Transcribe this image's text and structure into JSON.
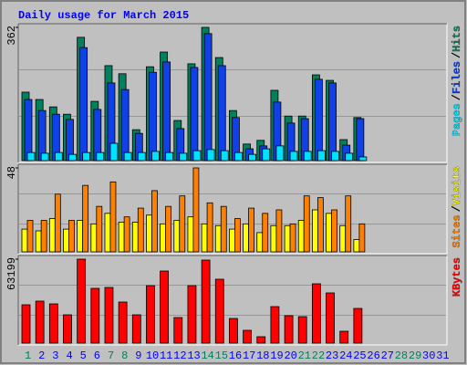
{
  "title": "Daily usage for March 2015",
  "chart_data": [
    {
      "type": "bar",
      "legend_separator": "/",
      "ylim": [
        0,
        362
      ],
      "yticks": [
        362
      ],
      "series": [
        {
          "name": "Pages",
          "color": "#00e0ff",
          "values": [
            22,
            20,
            22,
            17,
            22,
            22,
            47,
            22,
            22,
            25,
            22,
            20,
            27,
            30,
            27,
            22,
            17,
            32,
            40,
            25,
            25,
            27,
            25,
            20,
            10,
            null,
            null,
            null,
            null,
            null,
            null
          ]
        },
        {
          "name": "Files",
          "color": "#1040e8",
          "values": [
            166,
            136,
            126,
            112,
            307,
            139,
            211,
            193,
            74,
            240,
            268,
            87,
            253,
            345,
            258,
            117,
            32,
            40,
            159,
            102,
            114,
            221,
            211,
            42,
            114,
            null,
            null,
            null,
            null,
            null,
            null
          ]
        },
        {
          "name": "Hits",
          "color": "#00805c",
          "values": [
            186,
            166,
            146,
            126,
            335,
            161,
            258,
            236,
            84,
            255,
            295,
            109,
            263,
            362,
            280,
            136,
            45,
            55,
            191,
            121,
            121,
            233,
            218,
            57,
            117,
            null,
            null,
            null,
            null,
            null,
            null
          ]
        }
      ]
    },
    {
      "type": "bar",
      "legend_separator": "/",
      "ylim": [
        0,
        48
      ],
      "yticks": [
        48
      ],
      "series": [
        {
          "name": "Sites",
          "color": "#ff8000",
          "values": [
            18,
            18,
            33,
            18,
            38,
            26,
            40,
            20,
            25,
            35,
            26,
            32,
            48,
            28,
            26,
            19,
            25,
            22,
            24,
            16,
            32,
            31,
            24,
            32,
            16,
            null,
            null,
            null,
            null,
            null,
            null
          ]
        },
        {
          "name": "Visits",
          "color": "#ffff00",
          "values": [
            13,
            12,
            19,
            13,
            18,
            16,
            22,
            17,
            17,
            21,
            16,
            18,
            20,
            16,
            15,
            13,
            16,
            11,
            15,
            15,
            18,
            24,
            22,
            15,
            7,
            null,
            null,
            null,
            null,
            null,
            null
          ]
        }
      ]
    },
    {
      "type": "bar",
      "ylim": [
        0,
        63199
      ],
      "yticks": [
        63199
      ],
      "categories": [
        1,
        2,
        3,
        4,
        5,
        6,
        7,
        8,
        9,
        10,
        11,
        12,
        13,
        14,
        15,
        16,
        17,
        18,
        19,
        20,
        21,
        22,
        23,
        24,
        25,
        26,
        27,
        28,
        29,
        30,
        31
      ],
      "category_color": "#0000ff",
      "highlight_categories": [
        1,
        7,
        8,
        14,
        15,
        21,
        22,
        28,
        29
      ],
      "highlight_color": "#00805c",
      "series": [
        {
          "name": "KBytes",
          "color": "#ff0000",
          "values": [
            28852,
            31600,
            29540,
            21296,
            63199,
            41217,
            41904,
            30913,
            21296,
            43278,
            54270,
            19235,
            43278,
            62512,
            48086,
            18548,
            9617,
            4809,
            27478,
            20609,
            19922,
            44652,
            37783,
            8930,
            26104,
            null,
            null,
            null,
            null,
            null,
            null
          ]
        }
      ]
    }
  ]
}
